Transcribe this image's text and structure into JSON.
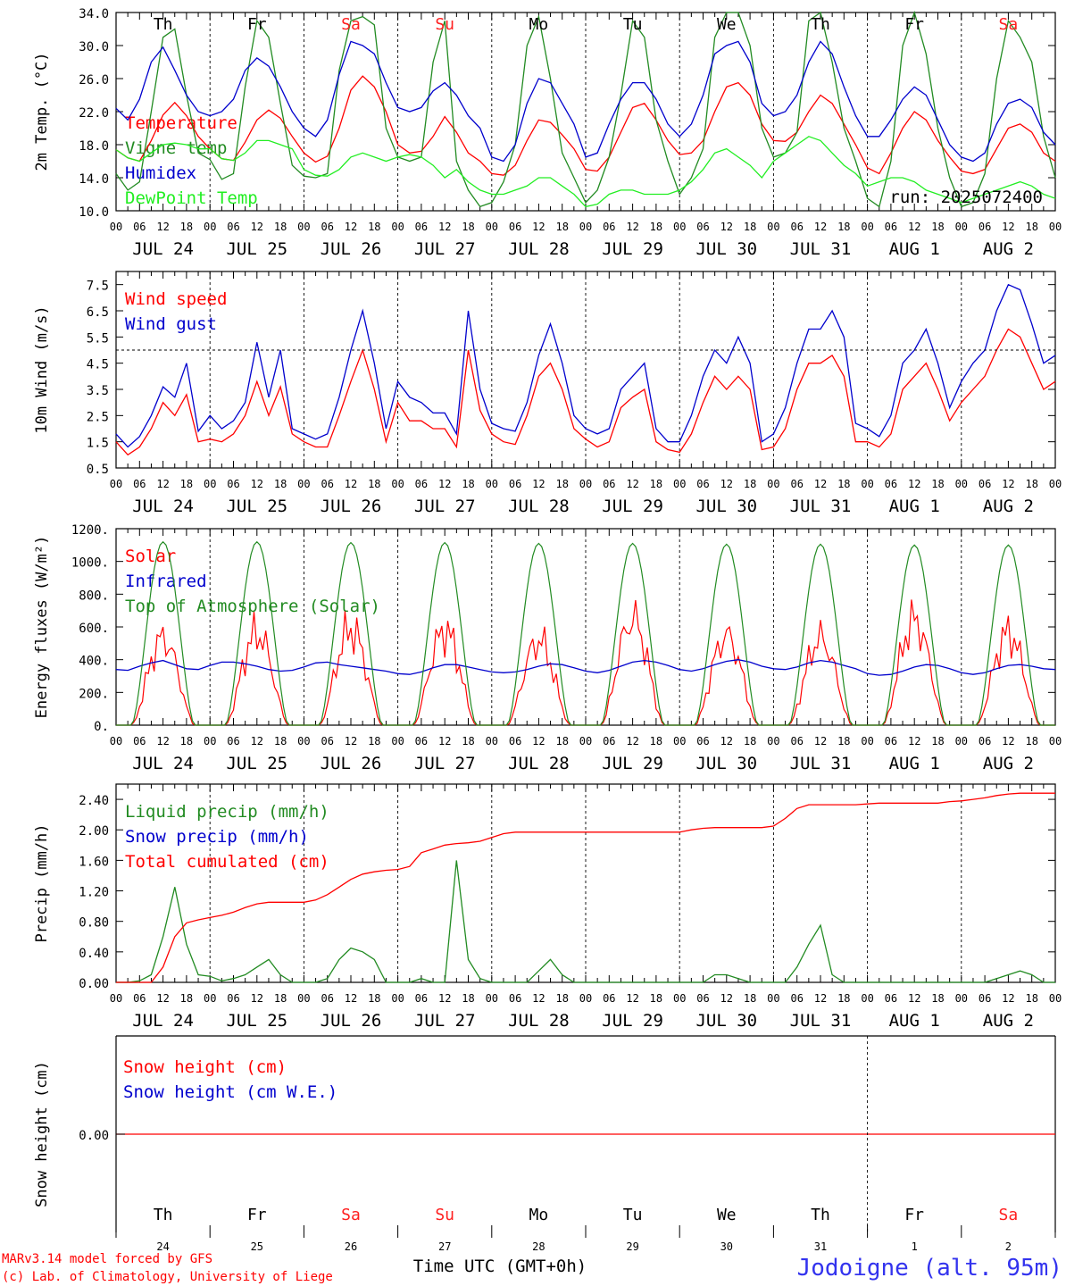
{
  "hour_labels": [
    "00",
    "06",
    "12",
    "18"
  ],
  "last_hour_label": "00",
  "date_labels": [
    "JUL 24",
    "JUL 25",
    "JUL 26",
    "JUL 27",
    "JUL 28",
    "JUL 29",
    "JUL 30",
    "JUL 31",
    "AUG  1",
    "AUG  2"
  ],
  "day_names": [
    "Th",
    "Fr",
    "Sa",
    "Su",
    "Mo",
    "Tu",
    "We",
    "Th",
    "Fr",
    "Sa"
  ],
  "day_numbers": [
    "24",
    "25",
    "26",
    "27",
    "28",
    "29",
    "30",
    "31",
    "1",
    "2"
  ],
  "weekend_color": "#ff2020",
  "weekday_color": "#000000",
  "weekend_days": [
    "Sa",
    "Su"
  ],
  "chart_data": [
    {
      "type": "line",
      "ylabel": "2m Temp. (°C)",
      "ylim": [
        10.0,
        34.0
      ],
      "yticks": [
        "10.0",
        "14.0",
        "18.0",
        "22.0",
        "26.0",
        "30.0",
        "34.0"
      ],
      "x_unit": "hours from 2025-07-24 00 UTC, 3-hourly",
      "annotation": "run: 2025072400",
      "series": [
        {
          "name": "Temperature",
          "color": "#ff0000",
          "values": [
            17.4,
            16.4,
            16.0,
            18.5,
            21.6,
            23.1,
            21.5,
            19.0,
            17.5,
            16.3,
            16.1,
            18.3,
            21.0,
            22.2,
            21.2,
            19.0,
            17.0,
            15.9,
            16.6,
            20.0,
            24.6,
            26.3,
            25.0,
            22.0,
            18.0,
            17.0,
            17.2,
            19.0,
            21.4,
            19.5,
            17.0,
            16.0,
            14.5,
            14.3,
            15.5,
            18.5,
            21.0,
            20.7,
            19.2,
            17.5,
            15.0,
            14.8,
            16.5,
            19.5,
            22.5,
            23.0,
            21.0,
            18.5,
            16.8,
            17.0,
            18.5,
            22.0,
            25.0,
            25.5,
            24.0,
            20.5,
            18.5,
            18.4,
            19.5,
            22.0,
            24.0,
            23.0,
            20.5,
            18.0,
            15.2,
            14.5,
            17.0,
            20.0,
            22.0,
            21.0,
            18.5,
            16.5,
            14.8,
            14.5,
            15.0,
            17.5,
            20.0,
            20.5,
            19.5,
            17.0,
            16.0
          ]
        },
        {
          "name": "Vigne temp",
          "color": "#228b22",
          "values": [
            14.5,
            12.5,
            13.5,
            22.0,
            31.0,
            32.0,
            24.0,
            17.0,
            16.2,
            13.8,
            14.5,
            25.0,
            33.0,
            31.0,
            23.0,
            15.5,
            14.2,
            14.0,
            14.5,
            27.0,
            33.0,
            33.5,
            32.5,
            20.0,
            16.5,
            16.0,
            16.5,
            28.0,
            33.0,
            16.0,
            12.5,
            10.5,
            11.0,
            13.5,
            18.0,
            30.0,
            33.5,
            26.0,
            17.0,
            14.0,
            11.0,
            12.5,
            16.5,
            24.0,
            33.0,
            31.0,
            21.0,
            16.0,
            12.0,
            14.0,
            17.5,
            31.0,
            34.0,
            34.0,
            30.0,
            20.0,
            16.5,
            17.0,
            19.5,
            33.0,
            34.0,
            28.0,
            20.0,
            16.0,
            11.5,
            10.5,
            16.0,
            30.0,
            34.0,
            29.0,
            20.0,
            14.0,
            10.5,
            11.0,
            14.5,
            26.0,
            33.0,
            31.0,
            28.0,
            19.0,
            14.0
          ]
        },
        {
          "name": "Humidex",
          "color": "#0000cd",
          "values": [
            22.4,
            21.0,
            23.5,
            28.0,
            29.8,
            27.0,
            24.0,
            22.0,
            21.5,
            22.0,
            23.5,
            27.0,
            28.5,
            27.5,
            25.0,
            22.0,
            20.0,
            19.0,
            21.0,
            26.5,
            30.5,
            30.0,
            29.0,
            25.5,
            22.5,
            22.0,
            22.5,
            24.5,
            25.5,
            24.0,
            21.5,
            20.0,
            16.5,
            16.0,
            18.0,
            23.0,
            26.0,
            25.5,
            23.0,
            20.5,
            16.5,
            17.0,
            20.5,
            23.5,
            25.5,
            25.5,
            23.5,
            20.5,
            19.0,
            20.5,
            24.0,
            29.0,
            30.0,
            30.5,
            28.0,
            23.0,
            21.5,
            22.0,
            24.0,
            28.0,
            30.5,
            29.0,
            25.0,
            21.5,
            19.0,
            19.0,
            21.0,
            23.5,
            25.0,
            24.0,
            21.0,
            18.0,
            16.5,
            16.0,
            17.0,
            20.5,
            23.0,
            23.5,
            22.5,
            19.5,
            18.0
          ]
        },
        {
          "name": "DewPoint Temp",
          "color": "#22ee22",
          "values": [
            17.4,
            16.4,
            16.0,
            17.0,
            18.0,
            18.2,
            18.0,
            17.5,
            17.5,
            16.3,
            16.1,
            17.0,
            18.5,
            18.5,
            18.0,
            17.5,
            15.0,
            14.3,
            14.2,
            15.0,
            16.5,
            17.0,
            16.5,
            16.0,
            16.5,
            16.8,
            16.5,
            15.5,
            14.0,
            15.0,
            13.5,
            12.5,
            12.0,
            12.0,
            12.5,
            13.0,
            14.0,
            14.0,
            13.0,
            12.0,
            10.5,
            10.8,
            12.0,
            12.5,
            12.5,
            12.0,
            12.0,
            12.0,
            12.5,
            13.5,
            15.0,
            17.0,
            17.5,
            16.5,
            15.5,
            14.0,
            16.0,
            17.0,
            18.0,
            19.0,
            18.5,
            17.0,
            15.5,
            14.5,
            13.0,
            13.5,
            14.0,
            14.0,
            13.5,
            12.5,
            12.0,
            11.5,
            11.0,
            11.5,
            12.0,
            12.5,
            13.0,
            13.5,
            13.0,
            12.0,
            11.5
          ]
        }
      ]
    },
    {
      "type": "line",
      "ylabel": "10m Wind (m/s)",
      "ylim": [
        0.5,
        8.0
      ],
      "yticks": [
        "0.5",
        "1.5",
        "2.5",
        "3.5",
        "4.5",
        "5.5",
        "6.5",
        "7.5"
      ],
      "reference_line": 5.0,
      "series": [
        {
          "name": "Wind speed",
          "color": "#ff0000",
          "values": [
            1.5,
            1.0,
            1.3,
            2.0,
            3.0,
            2.5,
            3.3,
            1.5,
            1.6,
            1.5,
            1.8,
            2.5,
            3.8,
            2.5,
            3.6,
            1.8,
            1.5,
            1.3,
            1.3,
            2.5,
            3.8,
            5.0,
            3.5,
            1.5,
            3.0,
            2.3,
            2.3,
            2.0,
            2.0,
            1.3,
            5.0,
            2.7,
            1.8,
            1.5,
            1.4,
            2.5,
            4.0,
            4.5,
            3.5,
            2.0,
            1.6,
            1.3,
            1.5,
            2.8,
            3.2,
            3.5,
            1.5,
            1.2,
            1.1,
            1.8,
            3.0,
            4.0,
            3.5,
            4.0,
            3.5,
            1.2,
            1.3,
            2.0,
            3.5,
            4.5,
            4.5,
            4.8,
            4.0,
            1.5,
            1.5,
            1.3,
            1.8,
            3.5,
            4.0,
            4.5,
            3.5,
            2.3,
            3.0,
            3.5,
            4.0,
            5.0,
            5.8,
            5.5,
            4.5,
            3.5,
            3.8
          ]
        },
        {
          "name": "Wind gust",
          "color": "#0000cd",
          "values": [
            1.8,
            1.3,
            1.7,
            2.5,
            3.6,
            3.2,
            4.5,
            1.9,
            2.5,
            2.0,
            2.3,
            3.0,
            5.3,
            3.2,
            5.0,
            2.0,
            1.8,
            1.6,
            1.8,
            3.2,
            5.0,
            6.5,
            4.5,
            2.0,
            3.8,
            3.2,
            3.0,
            2.6,
            2.6,
            1.8,
            6.5,
            3.5,
            2.2,
            2.0,
            1.9,
            3.0,
            4.8,
            6.0,
            4.5,
            2.5,
            2.0,
            1.8,
            2.0,
            3.5,
            4.0,
            4.5,
            2.0,
            1.5,
            1.5,
            2.5,
            4.0,
            5.0,
            4.5,
            5.5,
            4.5,
            1.5,
            1.8,
            2.8,
            4.5,
            5.8,
            5.8,
            6.5,
            5.5,
            2.2,
            2.0,
            1.7,
            2.5,
            4.5,
            5.0,
            5.8,
            4.5,
            2.8,
            3.8,
            4.5,
            5.0,
            6.5,
            7.5,
            7.3,
            6.0,
            4.5,
            4.8
          ]
        }
      ]
    },
    {
      "type": "line",
      "ylabel": "Energy fluxes (W/m²)",
      "ylim": [
        0,
        1200
      ],
      "yticks": [
        "0.",
        "200.",
        "400.",
        "600.",
        "800.",
        "1000.",
        "1200."
      ],
      "series": [
        {
          "name": "Solar",
          "color": "#ff0000",
          "pattern": "daily",
          "peaks": [
            680,
            720,
            750,
            740,
            660,
            830,
            700,
            680,
            820,
            720
          ]
        },
        {
          "name": "Infrared",
          "color": "#0000cd",
          "values": [
            340,
            335,
            360,
            380,
            395,
            370,
            345,
            340,
            365,
            385,
            385,
            375,
            360,
            340,
            330,
            335,
            355,
            380,
            385,
            370,
            360,
            350,
            340,
            330,
            315,
            310,
            325,
            350,
            370,
            370,
            355,
            340,
            325,
            320,
            325,
            340,
            360,
            375,
            370,
            350,
            330,
            320,
            335,
            360,
            385,
            395,
            385,
            365,
            340,
            330,
            345,
            370,
            390,
            400,
            385,
            360,
            345,
            340,
            355,
            380,
            395,
            385,
            365,
            345,
            315,
            305,
            310,
            330,
            355,
            370,
            365,
            345,
            320,
            310,
            320,
            345,
            365,
            370,
            360,
            345,
            340
          ]
        },
        {
          "name": "Top of Atmosphere (Solar)",
          "color": "#228b22",
          "pattern": "daily",
          "peaks": [
            1120,
            1120,
            1115,
            1115,
            1110,
            1110,
            1105,
            1105,
            1100,
            1100
          ]
        }
      ]
    },
    {
      "type": "line",
      "ylabel": "Precip (mm/h)",
      "ylim": [
        0,
        2.6
      ],
      "yticks": [
        "0.00",
        "0.40",
        "0.80",
        "1.20",
        "1.60",
        "2.00",
        "2.40"
      ],
      "series": [
        {
          "name": "Liquid precip (mm/h)",
          "color": "#228b22",
          "values": [
            0,
            0,
            0.02,
            0.1,
            0.6,
            1.25,
            0.5,
            0.1,
            0.08,
            0.02,
            0.05,
            0.1,
            0.2,
            0.3,
            0.1,
            0,
            0,
            0,
            0.05,
            0.3,
            0.45,
            0.4,
            0.3,
            0,
            0,
            0,
            0.05,
            0,
            0,
            1.6,
            0.3,
            0.05,
            0,
            0,
            0,
            0,
            0.15,
            0.3,
            0.1,
            0,
            0,
            0,
            0,
            0,
            0,
            0,
            0,
            0,
            0,
            0,
            0,
            0.1,
            0.1,
            0.05,
            0,
            0,
            0,
            0,
            0.2,
            0.5,
            0.75,
            0.1,
            0,
            0,
            0,
            0,
            0,
            0,
            0,
            0,
            0,
            0,
            0,
            0,
            0,
            0.05,
            0.1,
            0.15,
            0.1,
            0,
            0
          ]
        },
        {
          "name": "Snow precip (mm/h)",
          "color": "#0000cd",
          "values": []
        },
        {
          "name": "Total cumulated (cm)",
          "color": "#ff0000",
          "values": [
            0,
            0,
            0,
            0,
            0.2,
            0.6,
            0.78,
            0.82,
            0.85,
            0.88,
            0.92,
            0.98,
            1.03,
            1.05,
            1.05,
            1.05,
            1.05,
            1.08,
            1.15,
            1.25,
            1.35,
            1.42,
            1.45,
            1.47,
            1.48,
            1.52,
            1.7,
            1.75,
            1.8,
            1.82,
            1.83,
            1.85,
            1.9,
            1.95,
            1.97,
            1.97,
            1.97,
            1.97,
            1.97,
            1.97,
            1.97,
            1.97,
            1.97,
            1.97,
            1.97,
            1.97,
            1.97,
            1.97,
            1.97,
            2.0,
            2.02,
            2.03,
            2.03,
            2.03,
            2.03,
            2.03,
            2.05,
            2.15,
            2.28,
            2.33,
            2.33,
            2.33,
            2.33,
            2.33,
            2.34,
            2.35,
            2.35,
            2.35,
            2.35,
            2.35,
            2.35,
            2.37,
            2.38,
            2.4,
            2.42,
            2.45,
            2.47,
            2.48,
            2.48,
            2.48,
            2.48
          ]
        }
      ]
    },
    {
      "type": "line",
      "ylabel": "Snow height (cm)",
      "ytick": "0.00",
      "series": [
        {
          "name": "Snow height (cm)",
          "color": "#ff0000",
          "values": [
            0,
            0
          ]
        },
        {
          "name": "Snow height (cm W.E.)",
          "color": "#0000cd",
          "values": []
        }
      ]
    }
  ],
  "xlabel": "Time UTC (GMT+0h)",
  "footer": {
    "line1": "MARv3.14 model forced by GFS",
    "line2": "(c) Lab. of Climatology, University of Liege",
    "station": "Jodoigne (alt. 95m)",
    "station_color": "#3333ee",
    "footer_color": "#ff0000"
  }
}
